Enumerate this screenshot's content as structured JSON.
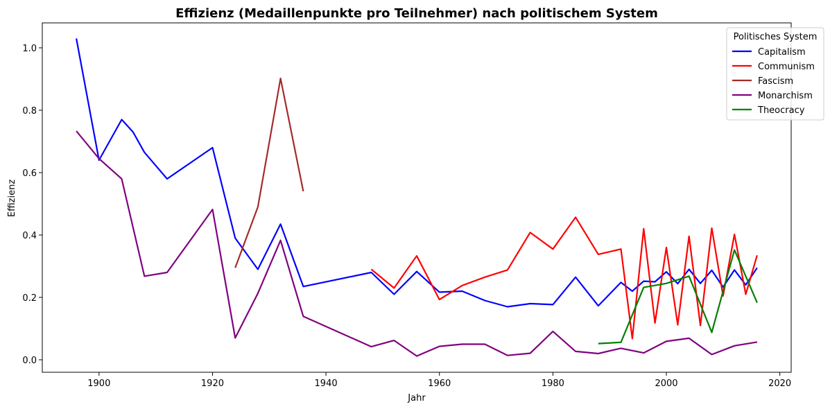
{
  "chart_data": {
    "type": "line",
    "title": "Effizienz (Medaillenpunkte pro Teilnehmer) nach politischem System",
    "xlabel": "Jahr",
    "ylabel": "Effizienz",
    "xlim": [
      1890,
      2022
    ],
    "ylim": [
      -0.04,
      1.08
    ],
    "xticks": [
      1900,
      1920,
      1940,
      1960,
      1980,
      2000,
      2020
    ],
    "yticks": [
      0.0,
      0.2,
      0.4,
      0.6,
      0.8,
      1.0
    ],
    "ytick_labels": [
      "0.0",
      "0.2",
      "0.4",
      "0.6",
      "0.8",
      "1.0"
    ],
    "grid": false,
    "legend": {
      "title": "Politisches System",
      "placement": "top-right"
    },
    "series": [
      {
        "name": "Capitalism",
        "color": "#0000ff",
        "x": [
          1896,
          1900,
          1904,
          1906,
          1908,
          1912,
          1920,
          1924,
          1928,
          1932,
          1936,
          1948,
          1952,
          1956,
          1960,
          1964,
          1968,
          1972,
          1976,
          1980,
          1984,
          1988,
          1992,
          1994,
          1996,
          1998,
          2000,
          2002,
          2004,
          2006,
          2008,
          2010,
          2012,
          2014,
          2016
        ],
        "y": [
          1.03,
          0.64,
          0.77,
          0.73,
          0.665,
          0.58,
          0.68,
          0.39,
          0.29,
          0.435,
          0.235,
          0.28,
          0.21,
          0.283,
          0.217,
          0.22,
          0.19,
          0.17,
          0.18,
          0.177,
          0.265,
          0.173,
          0.248,
          0.22,
          0.252,
          0.25,
          0.282,
          0.244,
          0.29,
          0.245,
          0.287,
          0.233,
          0.288,
          0.24,
          0.295
        ]
      },
      {
        "name": "Communism",
        "color": "#ff0000",
        "x": [
          1948,
          1952,
          1956,
          1960,
          1964,
          1968,
          1972,
          1976,
          1980,
          1984,
          1988,
          1992,
          1994,
          1996,
          1998,
          2000,
          2002,
          2004,
          2006,
          2008,
          2010,
          2012,
          2014,
          2016
        ],
        "y": [
          0.29,
          0.23,
          0.333,
          0.193,
          0.238,
          0.265,
          0.288,
          0.408,
          0.355,
          0.457,
          0.338,
          0.355,
          0.068,
          0.42,
          0.118,
          0.36,
          0.112,
          0.396,
          0.11,
          0.422,
          0.205,
          0.402,
          0.21,
          0.335
        ]
      },
      {
        "name": "Fascism",
        "color": "#a52a2a",
        "x": [
          1924,
          1928,
          1932,
          1936
        ],
        "y": [
          0.295,
          0.49,
          0.902,
          0.54
        ]
      },
      {
        "name": "Monarchism",
        "color": "#800080",
        "x": [
          1896,
          1900,
          1904,
          1908,
          1912,
          1920,
          1924,
          1928,
          1932,
          1936,
          1948,
          1952,
          1956,
          1960,
          1964,
          1968,
          1972,
          1976,
          1980,
          1984,
          1988,
          1992,
          1996,
          2000,
          2004,
          2008,
          2012,
          2016
        ],
        "y": [
          0.733,
          0.645,
          0.58,
          0.268,
          0.28,
          0.482,
          0.07,
          0.213,
          0.383,
          0.139,
          0.042,
          0.062,
          0.012,
          0.043,
          0.05,
          0.05,
          0.014,
          0.021,
          0.091,
          0.027,
          0.02,
          0.037,
          0.022,
          0.059,
          0.069,
          0.017,
          0.045,
          0.057
        ]
      },
      {
        "name": "Theocracy",
        "color": "#008000",
        "x": [
          1988,
          1992,
          1996,
          2000,
          2004,
          2008,
          2012,
          2016
        ],
        "y": [
          0.052,
          0.056,
          0.232,
          0.245,
          0.268,
          0.088,
          0.352,
          0.183
        ]
      }
    ]
  }
}
